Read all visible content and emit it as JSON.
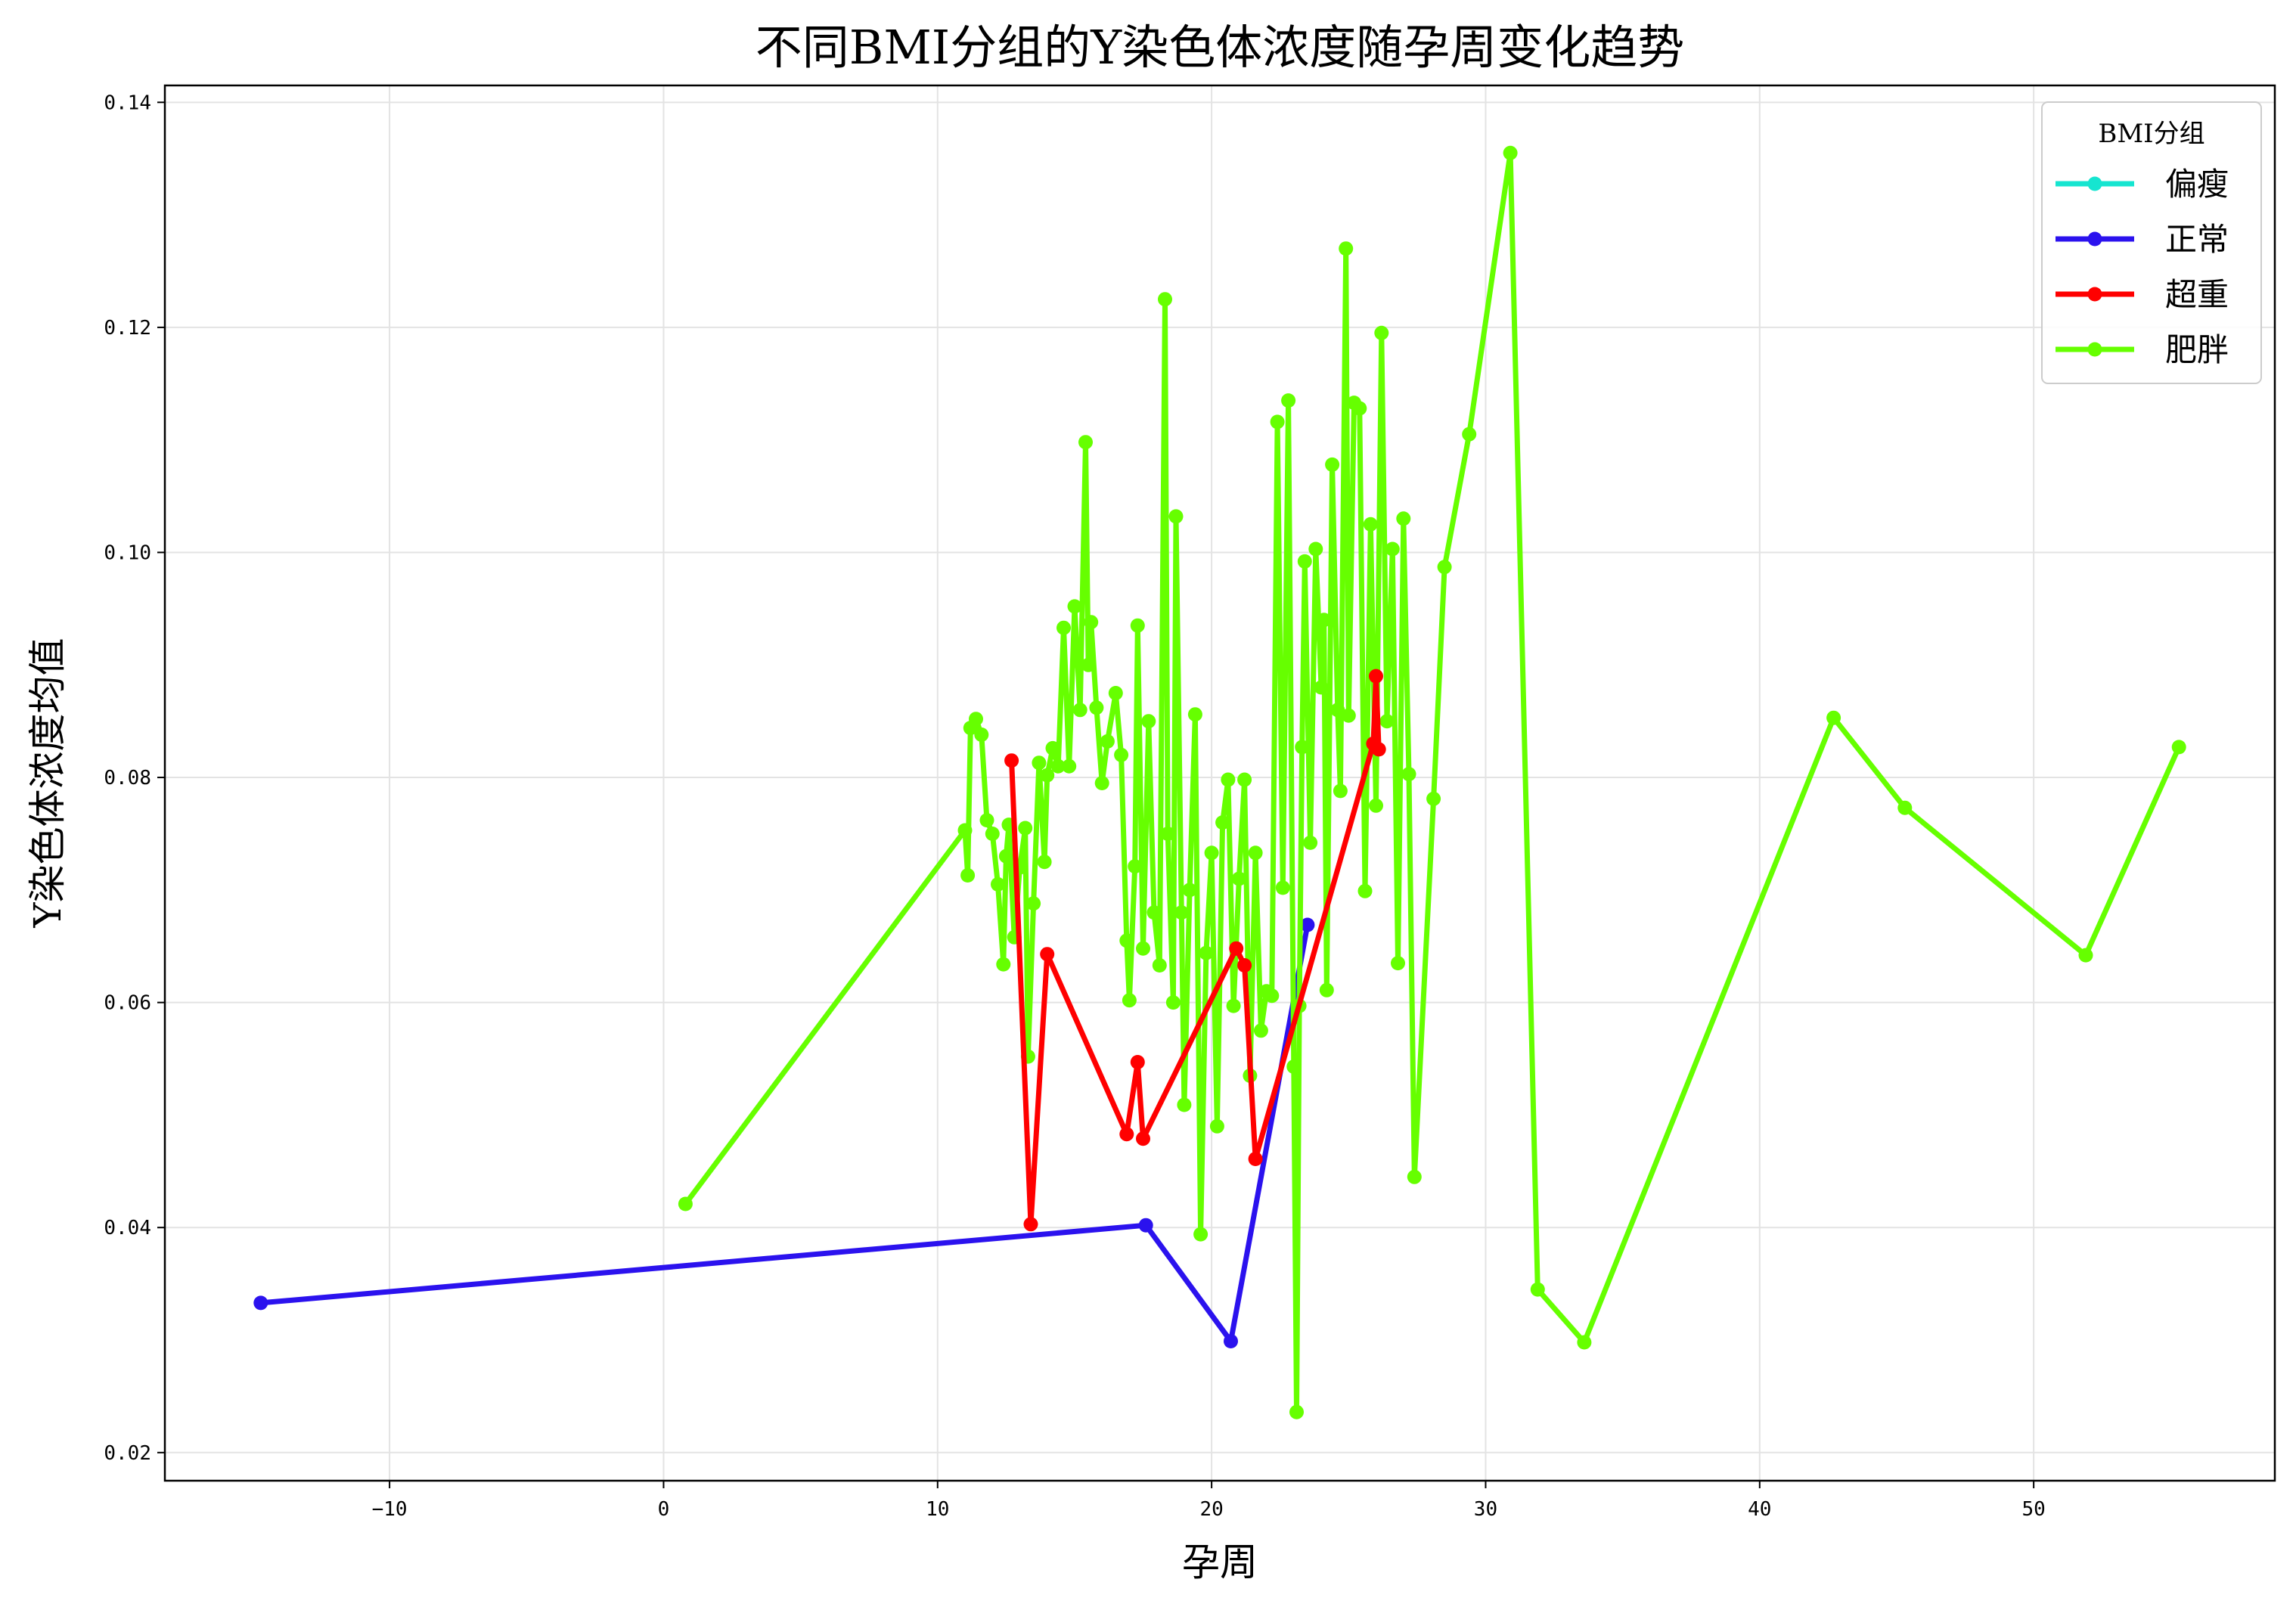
{
  "chart_data": {
    "type": "line",
    "title": "不同BMI分组的Y染色体浓度随孕周变化趋势",
    "xlabel": "孕周",
    "ylabel": "Y染色体浓度均值",
    "xlim": [
      -18.2,
      58.8
    ],
    "ylim": [
      0.0175,
      0.1415
    ],
    "xticks": [
      -10,
      0,
      10,
      20,
      30,
      40,
      50
    ],
    "yticks": [
      0.02,
      0.04,
      0.06,
      0.08,
      0.1,
      0.12,
      0.14
    ],
    "xtick_labels": [
      "−10",
      "0",
      "10",
      "20",
      "30",
      "40",
      "50"
    ],
    "ytick_labels": [
      "0.02",
      "0.04",
      "0.06",
      "0.08",
      "0.10",
      "0.12",
      "0.14"
    ],
    "grid": true,
    "legend": {
      "title": "BMI分组",
      "position": "top-right"
    },
    "series": [
      {
        "name": "偏瘦",
        "color": "#16e5d0",
        "x": [],
        "y": []
      },
      {
        "name": "正常",
        "color": "#2b12ee",
        "x": [
          -14.7,
          17.6,
          20.7,
          23.5
        ],
        "y": [
          0.0333,
          0.0402,
          0.0299,
          0.0669
        ]
      },
      {
        "name": "超重",
        "color": "#ff0000",
        "x": [
          12.7,
          13.4,
          14.0,
          16.9,
          17.3,
          17.5,
          20.9,
          21.2,
          21.6,
          25.9,
          26.0,
          26.1
        ],
        "y": [
          0.0815,
          0.0403,
          0.0643,
          0.0483,
          0.0547,
          0.0479,
          0.0648,
          0.0633,
          0.0461,
          0.083,
          0.089,
          0.0825
        ]
      },
      {
        "name": "肥胖",
        "color": "#66ff00",
        "x": [
          0.8,
          11.0,
          11.1,
          11.2,
          11.4,
          11.6,
          11.8,
          12.0,
          12.2,
          12.4,
          12.5,
          12.6,
          12.8,
          13.0,
          13.2,
          13.3,
          13.5,
          13.7,
          13.9,
          14.0,
          14.2,
          14.4,
          14.6,
          14.8,
          15.0,
          15.2,
          15.4,
          15.5,
          15.6,
          15.8,
          16.0,
          16.2,
          16.5,
          16.7,
          16.9,
          17.0,
          17.2,
          17.3,
          17.5,
          17.7,
          17.9,
          18.1,
          18.3,
          18.4,
          18.6,
          18.7,
          18.9,
          19.0,
          19.2,
          19.4,
          19.6,
          19.8,
          20.0,
          20.2,
          20.4,
          20.6,
          20.8,
          21.0,
          21.2,
          21.4,
          21.6,
          21.8,
          22.0,
          22.2,
          22.4,
          22.6,
          22.8,
          23.0,
          23.1,
          23.2,
          23.3,
          23.4,
          23.6,
          23.8,
          24.0,
          24.1,
          24.2,
          24.4,
          24.6,
          24.7,
          24.9,
          25.0,
          25.2,
          25.4,
          25.6,
          25.8,
          26.0,
          26.2,
          26.4,
          26.6,
          26.8,
          27.0,
          27.2,
          27.4,
          28.1,
          28.5,
          29.4,
          30.9,
          31.9,
          33.6,
          42.7,
          45.3,
          51.9,
          55.3
        ],
        "y": [
          0.0421,
          0.0753,
          0.0713,
          0.0844,
          0.0852,
          0.0838,
          0.0762,
          0.075,
          0.0705,
          0.0634,
          0.073,
          0.0758,
          0.0658,
          0.072,
          0.0755,
          0.0552,
          0.0688,
          0.0813,
          0.0725,
          0.0802,
          0.0826,
          0.081,
          0.0933,
          0.081,
          0.0952,
          0.086,
          0.1098,
          0.09,
          0.0938,
          0.0862,
          0.0795,
          0.0832,
          0.0875,
          0.082,
          0.0655,
          0.0602,
          0.0721,
          0.0935,
          0.0648,
          0.085,
          0.068,
          0.0633,
          0.1225,
          0.075,
          0.06,
          0.1032,
          0.068,
          0.0509,
          0.07,
          0.0856,
          0.0394,
          0.0644,
          0.0733,
          0.049,
          0.076,
          0.0798,
          0.0597,
          0.071,
          0.0798,
          0.0535,
          0.0733,
          0.0575,
          0.061,
          0.0606,
          0.1116,
          0.0702,
          0.1135,
          0.0543,
          0.0236,
          0.0597,
          0.0827,
          0.0992,
          0.0742,
          0.1003,
          0.088,
          0.094,
          0.0611,
          0.1078,
          0.086,
          0.0788,
          0.127,
          0.0855,
          0.1133,
          0.1128,
          0.0699,
          0.1025,
          0.0775,
          0.1195,
          0.085,
          0.1003,
          0.0635,
          0.103,
          0.0803,
          0.0445,
          0.0781,
          0.0987,
          0.1105,
          0.1355,
          0.0345,
          0.0298,
          0.0853,
          0.0773,
          0.0642,
          0.0827
        ]
      }
    ]
  }
}
